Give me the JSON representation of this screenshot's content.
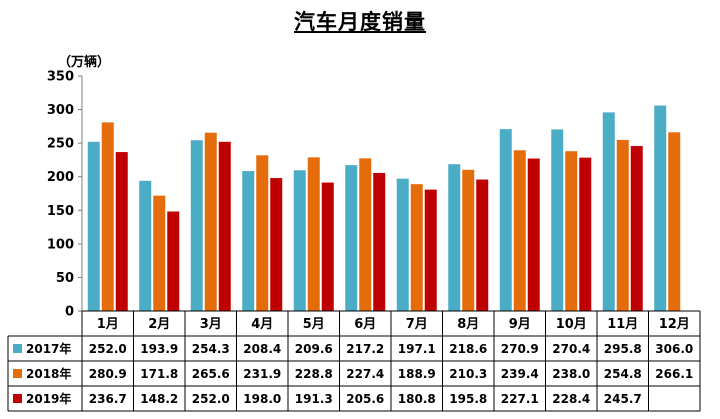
{
  "chart_data": {
    "type": "bar",
    "title": "汽车月度销量",
    "ylabel": "（万辆）",
    "ylim": [
      0,
      350
    ],
    "yticks": [
      "0",
      "50",
      "100",
      "150",
      "200",
      "250",
      "300",
      "350"
    ],
    "categories": [
      "1月",
      "2月",
      "3月",
      "4月",
      "5月",
      "6月",
      "7月",
      "8月",
      "9月",
      "10月",
      "11月",
      "12月"
    ],
    "series": [
      {
        "name": "2017年",
        "color": "#4bacc6",
        "values": [
          252.0,
          193.9,
          254.3,
          208.4,
          209.6,
          217.2,
          197.1,
          218.6,
          270.9,
          270.4,
          295.8,
          306.0
        ],
        "labels": [
          "252.0",
          "193.9",
          "254.3",
          "208.4",
          "209.6",
          "217.2",
          "197.1",
          "218.6",
          "270.9",
          "270.4",
          "295.8",
          "306.0"
        ]
      },
      {
        "name": "2018年",
        "color": "#e46c0a",
        "values": [
          280.9,
          171.8,
          265.6,
          231.9,
          228.8,
          227.4,
          188.9,
          210.3,
          239.4,
          238.0,
          254.8,
          266.1
        ],
        "labels": [
          "280.9",
          "171.8",
          "265.6",
          "231.9",
          "228.8",
          "227.4",
          "188.9",
          "210.3",
          "239.4",
          "238.0",
          "254.8",
          "266.1"
        ]
      },
      {
        "name": "2019年",
        "color": "#c00000",
        "values": [
          236.7,
          148.2,
          252.0,
          198.0,
          191.3,
          205.6,
          180.8,
          195.8,
          227.1,
          228.4,
          245.7,
          null
        ],
        "labels": [
          "236.7",
          "148.2",
          "252.0",
          "198.0",
          "191.3",
          "205.6",
          "180.8",
          "195.8",
          "227.1",
          "228.4",
          "245.7",
          ""
        ]
      }
    ],
    "grid": false,
    "legend": "data-table"
  }
}
